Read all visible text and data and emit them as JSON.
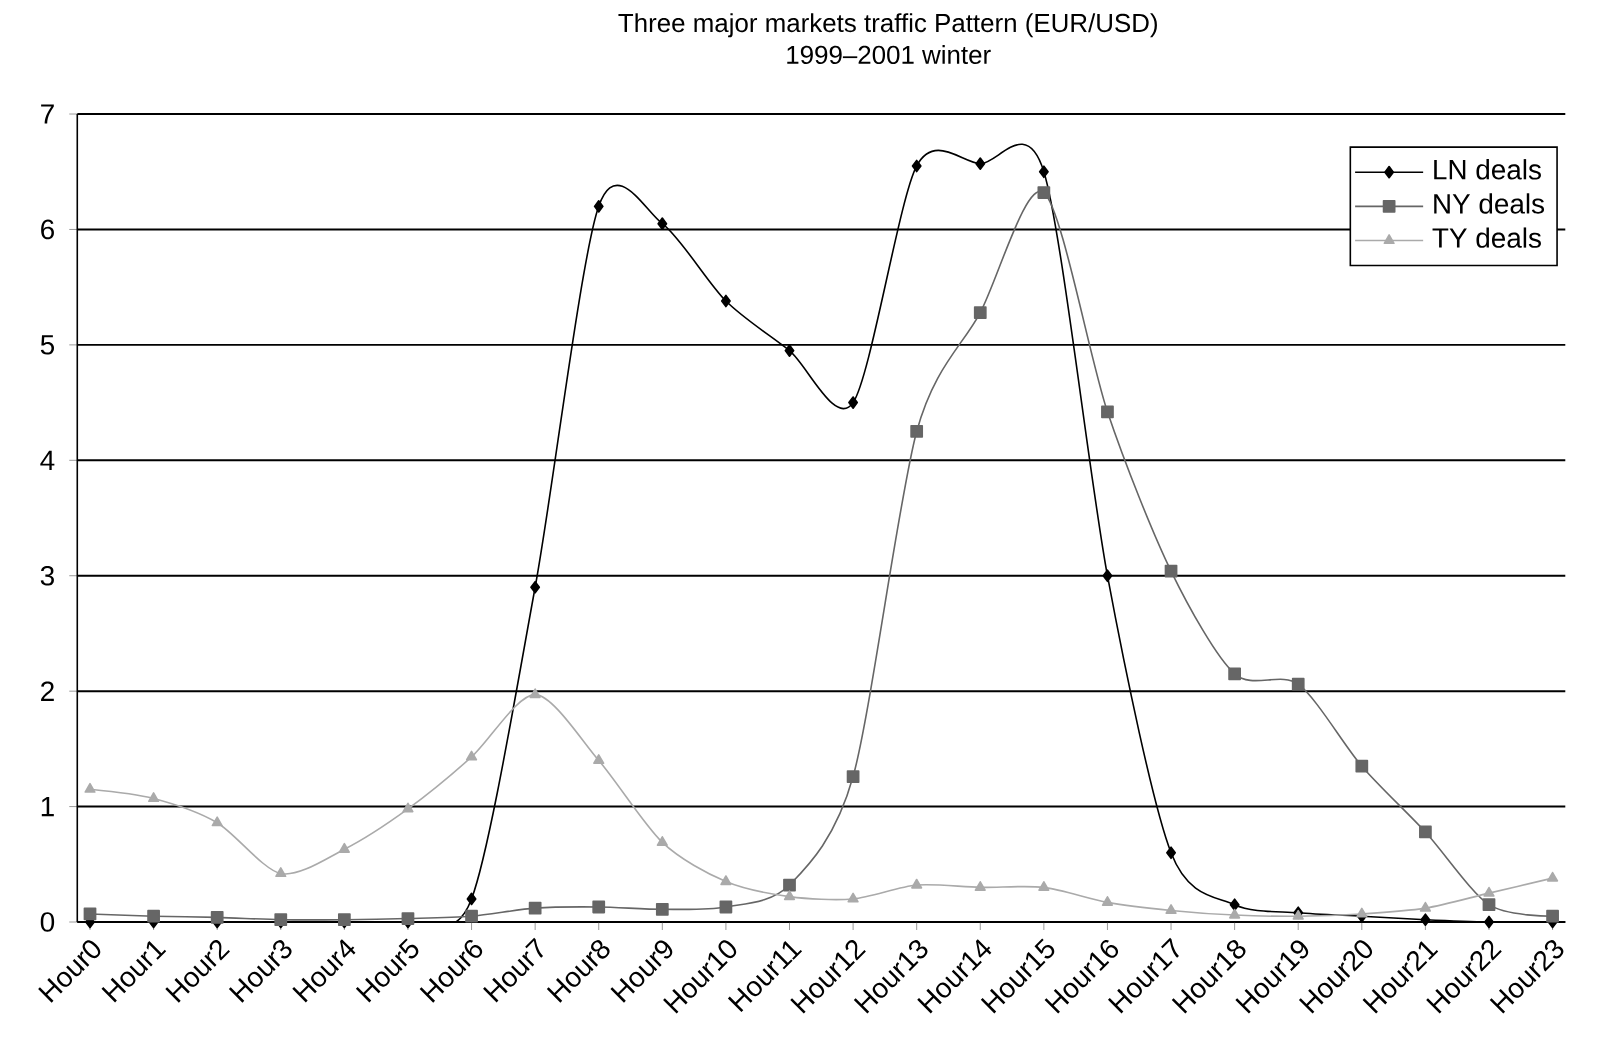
{
  "chart_data": {
    "type": "line",
    "title": "Three major markets traffic Pattern (EUR/USD)",
    "subtitle": "1999–2001 winter",
    "categories": [
      "Hour0",
      "Hour1",
      "Hour2",
      "Hour3",
      "Hour4",
      "Hour5",
      "Hour6",
      "Hour7",
      "Hour8",
      "Hour9",
      "Hour10",
      "Hour11",
      "Hour12",
      "Hour13",
      "Hour14",
      "Hour15",
      "Hour16",
      "Hour17",
      "Hour18",
      "Hour19",
      "Hour20",
      "Hour21",
      "Hour22",
      "Hour23"
    ],
    "series": [
      {
        "name": "LN deals",
        "color": "#000000",
        "marker": "diamond",
        "values": [
          0,
          0,
          0,
          0,
          0,
          0,
          0.2,
          2.9,
          6.2,
          6.05,
          5.38,
          4.95,
          4.5,
          6.55,
          6.57,
          6.5,
          3.0,
          0.6,
          0.15,
          0.08,
          0.05,
          0.02,
          0,
          0
        ]
      },
      {
        "name": "NY deals",
        "color": "#666666",
        "marker": "square",
        "values": [
          0.07,
          0.05,
          0.04,
          0.02,
          0.02,
          0.03,
          0.05,
          0.12,
          0.13,
          0.11,
          0.13,
          0.32,
          1.26,
          4.25,
          5.28,
          6.32,
          4.42,
          3.04,
          2.15,
          2.06,
          1.35,
          0.78,
          0.15,
          0.05
        ]
      },
      {
        "name": "TY deals",
        "color": "#aaaaaa",
        "marker": "triangle",
        "values": [
          1.15,
          1.07,
          0.86,
          0.42,
          0.63,
          0.98,
          1.43,
          1.97,
          1.4,
          0.69,
          0.35,
          0.22,
          0.2,
          0.32,
          0.3,
          0.3,
          0.17,
          0.1,
          0.06,
          0.05,
          0.07,
          0.12,
          0.25,
          0.38
        ]
      }
    ],
    "ylim": [
      0,
      7
    ],
    "yticks": [
      0,
      1,
      2,
      3,
      4,
      5,
      6,
      7
    ],
    "grid": "y",
    "legend": "top right",
    "line_style": "solid"
  }
}
